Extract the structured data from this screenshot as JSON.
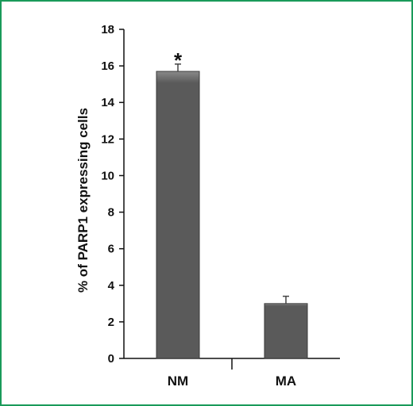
{
  "chart_data": {
    "type": "bar",
    "categories": [
      "NM",
      "MA"
    ],
    "values": [
      15.7,
      3.0
    ],
    "error_upper": [
      16.1,
      3.4
    ],
    "ylabel": "% of PARP1 expressing cells",
    "xlabel": "",
    "ylim": [
      0,
      18
    ],
    "yticks": [
      "0",
      "2",
      "4",
      "6",
      "8",
      "10",
      "12",
      "14",
      "16",
      "18"
    ],
    "annotations": [
      {
        "category": "NM",
        "text": "*"
      }
    ],
    "grid": false,
    "colors": {
      "bar_fill": "#5a5a5a",
      "bar_highlight": "#8a8a8a",
      "bar_edge": "#3a3a3a",
      "axis": "#111111",
      "frame_border": "#1a9a5a"
    }
  }
}
